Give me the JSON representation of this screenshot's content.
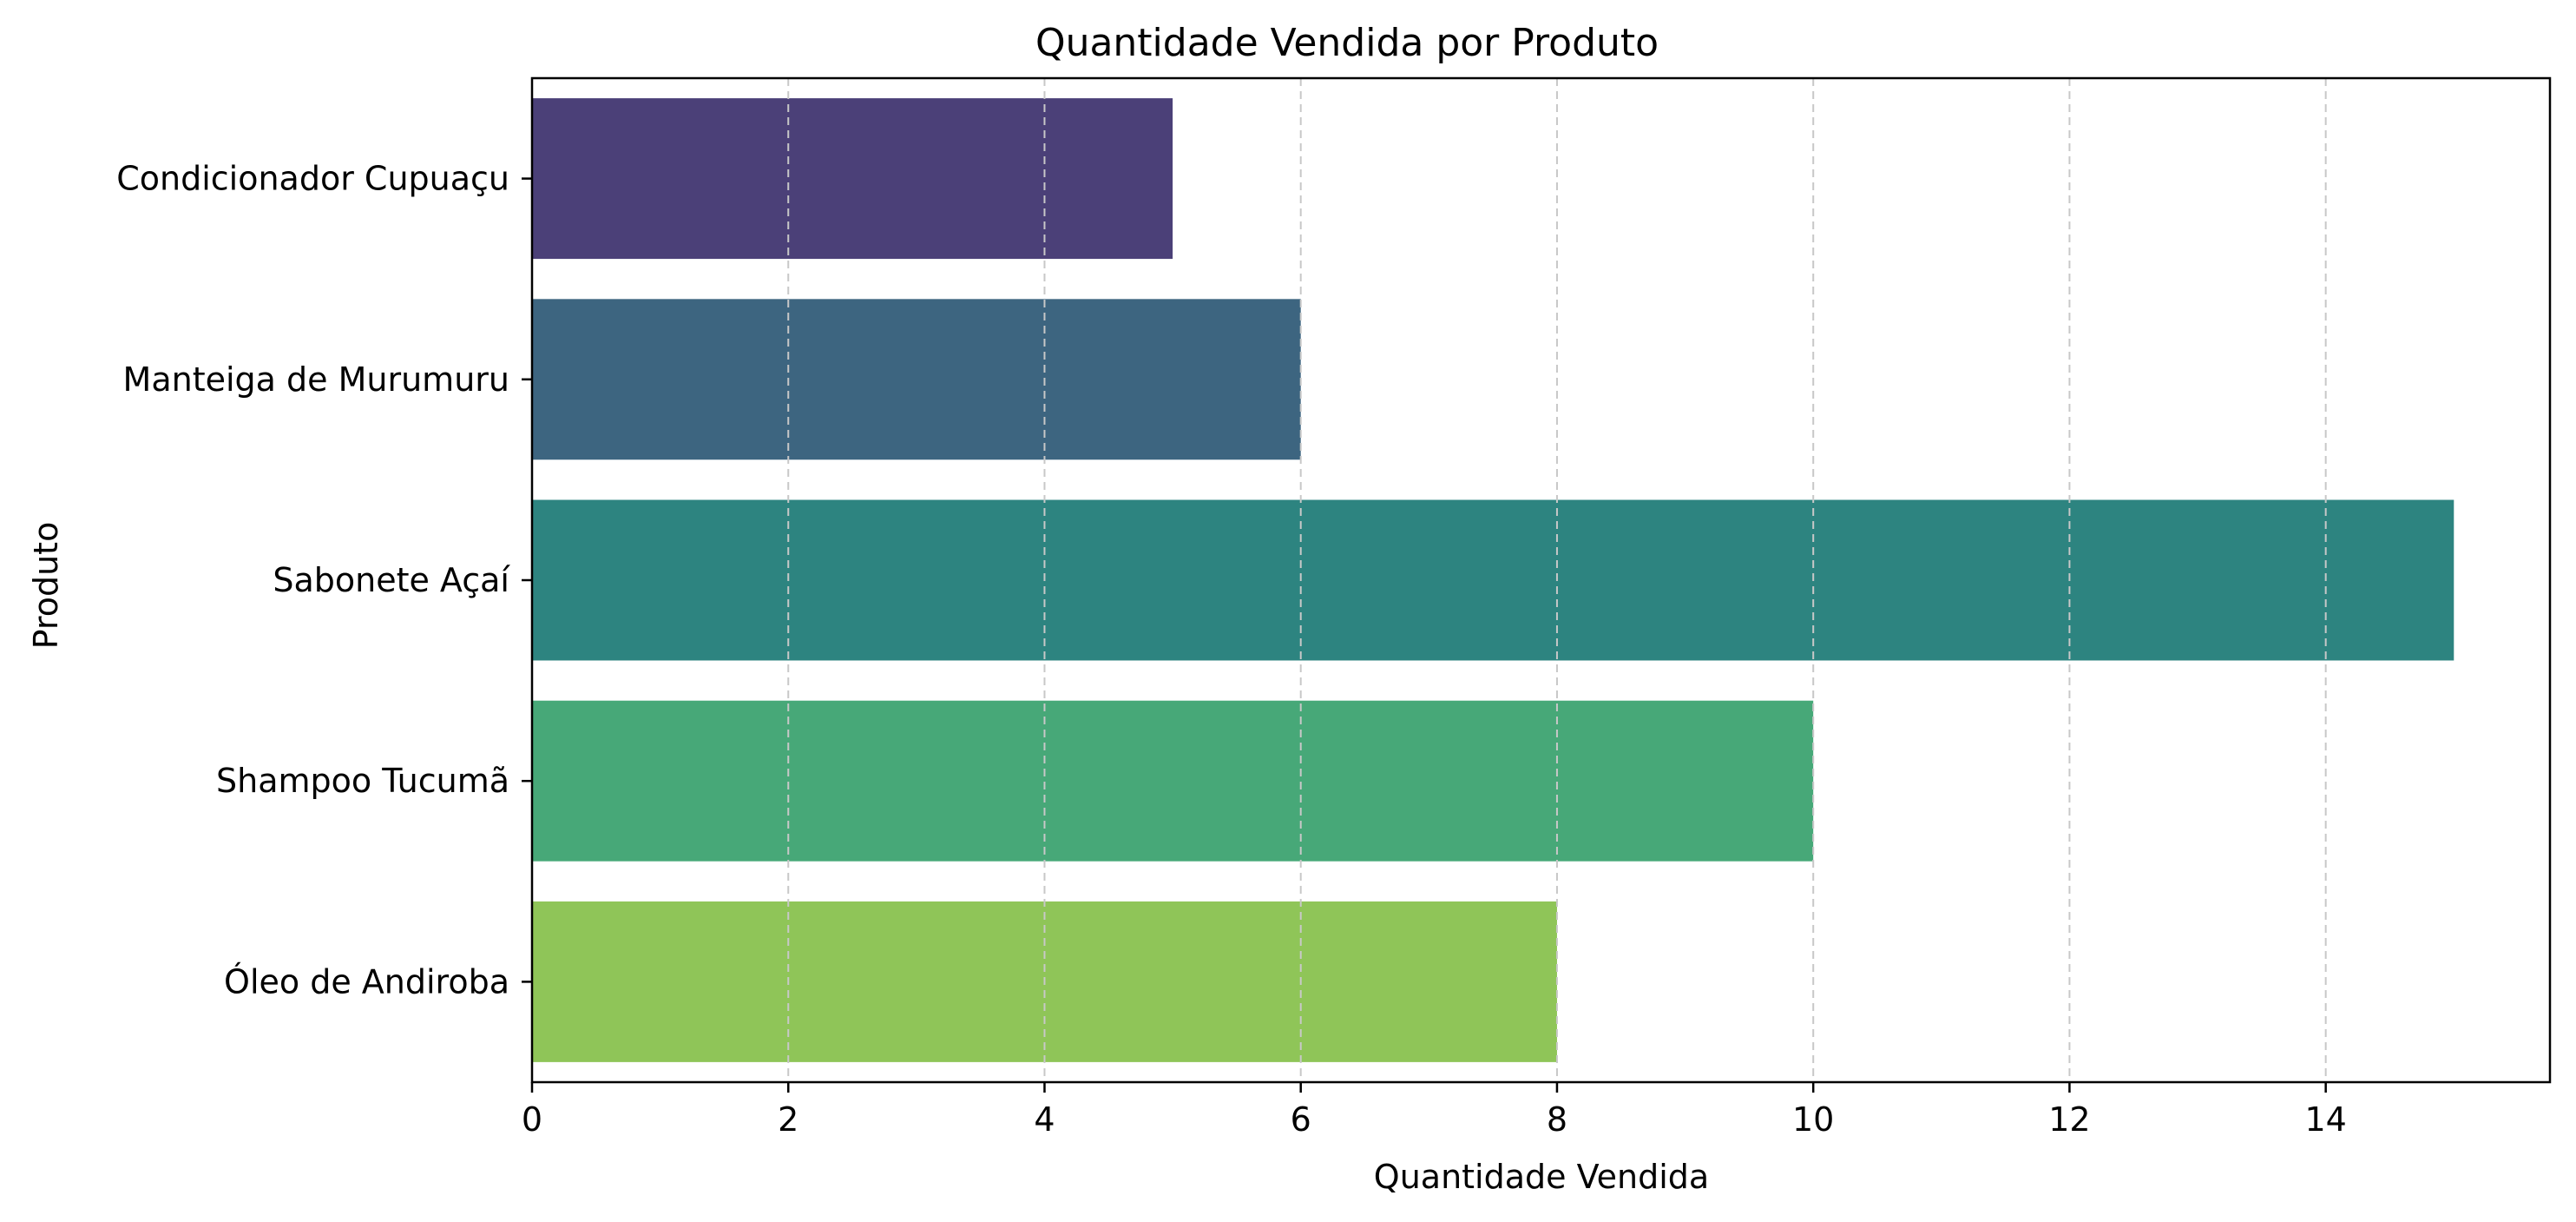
{
  "chart_data": {
    "type": "bar",
    "orientation": "horizontal",
    "title": "Quantidade Vendida por Produto",
    "xlabel": "Quantidade Vendida",
    "ylabel": "Produto",
    "categories": [
      "Condicionador Cupuaçu",
      "Manteiga de Murumuru",
      "Sabonete Açaí",
      "Shampoo Tucumã",
      "Óleo de Andiroba"
    ],
    "values": [
      5,
      6,
      15,
      10,
      8
    ],
    "colors": [
      "#4b4078",
      "#3d6580",
      "#2d8480",
      "#47a878",
      "#8fc558"
    ],
    "xlim": [
      0,
      15.75
    ],
    "xticks": [
      0,
      2,
      4,
      6,
      8,
      10,
      12,
      14
    ],
    "grid": {
      "x": true,
      "y": false,
      "style": "dashed",
      "color": "#c8c8c8"
    },
    "legend": "none"
  }
}
